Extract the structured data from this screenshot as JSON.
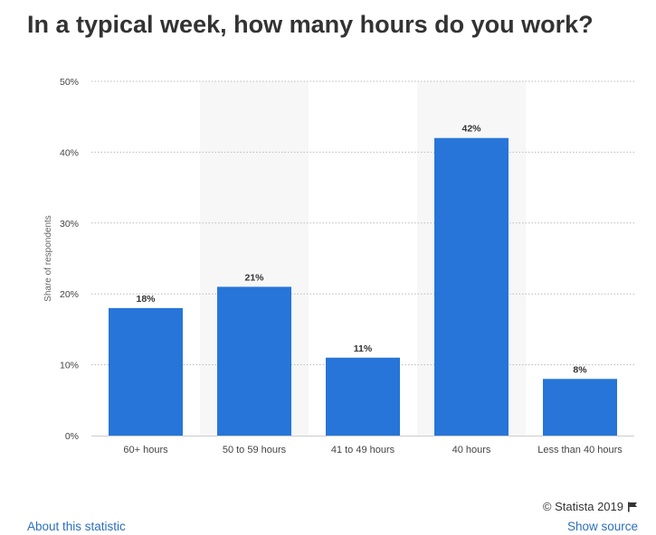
{
  "title": "In a typical week, how many hours do you work?",
  "chart_data": {
    "type": "bar",
    "categories": [
      "60+ hours",
      "50 to 59 hours",
      "41 to 49 hours",
      "40 hours",
      "Less than 40 hours"
    ],
    "values": [
      18,
      21,
      11,
      42,
      8
    ],
    "data_labels": [
      "18%",
      "21%",
      "11%",
      "42%",
      "8%"
    ],
    "ylabel": "Share of respondents",
    "xlabel": "",
    "ylim": [
      0,
      50
    ],
    "yticks": [
      0,
      10,
      20,
      30,
      40,
      50
    ],
    "ytick_labels": [
      "0%",
      "10%",
      "20%",
      "30%",
      "40%",
      "50%"
    ],
    "grid": true,
    "colors": {
      "bar": "#2775d9",
      "band": "#f7f7f7",
      "grid": "#bbbbbb"
    }
  },
  "footer": {
    "credit": "© Statista 2019",
    "about_link": "About this statistic",
    "source_link": "Show source"
  }
}
